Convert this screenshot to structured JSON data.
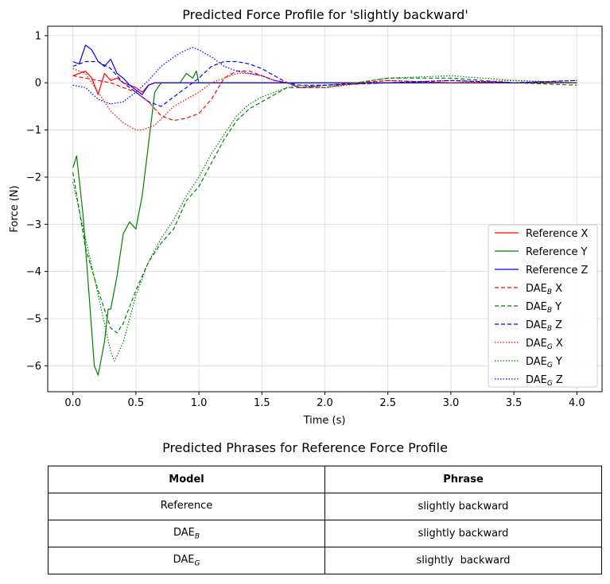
{
  "chart_data": {
    "type": "line",
    "title": "Predicted Force Profile for 'slightly backward'",
    "xlabel": "Time (s)",
    "ylabel": "Force (N)",
    "xlim": [
      -0.2,
      4.2
    ],
    "ylim": [
      -6.55,
      1.2
    ],
    "xticks": [
      0.0,
      0.5,
      1.0,
      1.5,
      2.0,
      2.5,
      3.0,
      3.5,
      4.0
    ],
    "xtick_labels": [
      "0.0",
      "0.5",
      "1.0",
      "1.5",
      "2.0",
      "2.5",
      "3.0",
      "3.5",
      "4.0"
    ],
    "yticks": [
      1,
      0,
      -1,
      -2,
      -3,
      -4,
      -5,
      -6
    ],
    "ytick_labels": [
      "1",
      "0",
      "−1",
      "−2",
      "−3",
      "−4",
      "−5",
      "−6"
    ],
    "grid": true,
    "legend_position": "lower-right",
    "series": [
      {
        "name": "Reference X",
        "color": "#ff0000",
        "dash": "solid",
        "points": [
          [
            0,
            0.15
          ],
          [
            0.05,
            0.2
          ],
          [
            0.1,
            0.25
          ],
          [
            0.15,
            0.1
          ],
          [
            0.2,
            -0.25
          ],
          [
            0.25,
            0.2
          ],
          [
            0.3,
            0.05
          ],
          [
            0.35,
            0.1
          ],
          [
            0.4,
            0.0
          ],
          [
            0.45,
            -0.05
          ],
          [
            0.5,
            -0.1
          ],
          [
            0.55,
            -0.2
          ],
          [
            0.6,
            -0.05
          ],
          [
            0.65,
            0.0
          ],
          [
            1.0,
            0.0
          ],
          [
            4.0,
            0.0
          ]
        ]
      },
      {
        "name": "Reference Y",
        "color": "#008000",
        "dash": "solid",
        "points": [
          [
            0,
            -1.8
          ],
          [
            0.03,
            -1.55
          ],
          [
            0.08,
            -2.8
          ],
          [
            0.12,
            -4.2
          ],
          [
            0.17,
            -6.0
          ],
          [
            0.2,
            -6.2
          ],
          [
            0.25,
            -5.5
          ],
          [
            0.28,
            -4.8
          ],
          [
            0.3,
            -4.8
          ],
          [
            0.35,
            -4.1
          ],
          [
            0.4,
            -3.2
          ],
          [
            0.45,
            -2.95
          ],
          [
            0.5,
            -3.1
          ],
          [
            0.52,
            -2.8
          ],
          [
            0.55,
            -2.4
          ],
          [
            0.6,
            -1.3
          ],
          [
            0.65,
            -0.2
          ],
          [
            0.7,
            0.0
          ],
          [
            0.85,
            0.0
          ],
          [
            0.9,
            0.2
          ],
          [
            0.95,
            0.1
          ],
          [
            0.98,
            0.25
          ],
          [
            1.0,
            0.0
          ],
          [
            4.0,
            0.0
          ]
        ]
      },
      {
        "name": "Reference Z",
        "color": "#0000ff",
        "dash": "solid",
        "points": [
          [
            0,
            0.45
          ],
          [
            0.05,
            0.4
          ],
          [
            0.1,
            0.8
          ],
          [
            0.15,
            0.7
          ],
          [
            0.2,
            0.45
          ],
          [
            0.25,
            0.35
          ],
          [
            0.3,
            0.5
          ],
          [
            0.35,
            0.2
          ],
          [
            0.4,
            0.1
          ],
          [
            0.45,
            -0.05
          ],
          [
            0.5,
            -0.15
          ],
          [
            0.55,
            -0.25
          ],
          [
            0.6,
            -0.05
          ],
          [
            0.65,
            0.0
          ],
          [
            4.0,
            0.0
          ]
        ]
      },
      {
        "name": "DAE_B X",
        "color": "#ff0000",
        "dash": "5,3",
        "points": [
          [
            0,
            0.15
          ],
          [
            0.1,
            0.1
          ],
          [
            0.2,
            0.05
          ],
          [
            0.3,
            0.0
          ],
          [
            0.4,
            -0.1
          ],
          [
            0.5,
            -0.2
          ],
          [
            0.6,
            -0.4
          ],
          [
            0.7,
            -0.7
          ],
          [
            0.8,
            -0.8
          ],
          [
            0.9,
            -0.75
          ],
          [
            1.0,
            -0.65
          ],
          [
            1.1,
            -0.35
          ],
          [
            1.2,
            0.1
          ],
          [
            1.3,
            0.25
          ],
          [
            1.4,
            0.25
          ],
          [
            1.5,
            0.15
          ],
          [
            1.6,
            0.05
          ],
          [
            1.7,
            0.0
          ],
          [
            1.8,
            -0.1
          ],
          [
            2.0,
            -0.05
          ],
          [
            2.5,
            0.05
          ],
          [
            3.0,
            0.0
          ],
          [
            3.5,
            0.0
          ],
          [
            4.0,
            0.0
          ]
        ]
      },
      {
        "name": "DAE_B Y",
        "color": "#008000",
        "dash": "5,3",
        "points": [
          [
            0,
            -1.9
          ],
          [
            0.1,
            -3.5
          ],
          [
            0.2,
            -4.4
          ],
          [
            0.3,
            -5.2
          ],
          [
            0.35,
            -5.3
          ],
          [
            0.4,
            -5.1
          ],
          [
            0.5,
            -4.4
          ],
          [
            0.6,
            -3.8
          ],
          [
            0.7,
            -3.4
          ],
          [
            0.8,
            -3.1
          ],
          [
            0.9,
            -2.5
          ],
          [
            1.0,
            -2.2
          ],
          [
            1.1,
            -1.7
          ],
          [
            1.2,
            -1.2
          ],
          [
            1.3,
            -0.8
          ],
          [
            1.4,
            -0.55
          ],
          [
            1.5,
            -0.4
          ],
          [
            1.6,
            -0.25
          ],
          [
            1.7,
            -0.1
          ],
          [
            1.8,
            -0.1
          ],
          [
            2.0,
            -0.1
          ],
          [
            2.5,
            0.1
          ],
          [
            3.0,
            0.1
          ],
          [
            3.5,
            0.0
          ],
          [
            4.0,
            -0.05
          ]
        ]
      },
      {
        "name": "DAE_B Z",
        "color": "#0000ff",
        "dash": "5,3",
        "points": [
          [
            0,
            0.35
          ],
          [
            0.1,
            0.45
          ],
          [
            0.2,
            0.45
          ],
          [
            0.3,
            0.3
          ],
          [
            0.4,
            0.0
          ],
          [
            0.5,
            -0.2
          ],
          [
            0.6,
            -0.4
          ],
          [
            0.7,
            -0.5
          ],
          [
            0.8,
            -0.3
          ],
          [
            0.9,
            -0.1
          ],
          [
            1.0,
            0.1
          ],
          [
            1.1,
            0.35
          ],
          [
            1.2,
            0.45
          ],
          [
            1.3,
            0.45
          ],
          [
            1.4,
            0.4
          ],
          [
            1.5,
            0.3
          ],
          [
            1.6,
            0.15
          ],
          [
            1.7,
            0.0
          ],
          [
            1.8,
            -0.05
          ],
          [
            2.0,
            -0.05
          ],
          [
            2.5,
            0.0
          ],
          [
            3.0,
            0.05
          ],
          [
            3.5,
            0.0
          ],
          [
            4.0,
            0.05
          ]
        ]
      },
      {
        "name": "DAE_G X",
        "color": "#ff0000",
        "dash": "1.5,2",
        "points": [
          [
            0,
            0.3
          ],
          [
            0.1,
            0.2
          ],
          [
            0.2,
            -0.2
          ],
          [
            0.3,
            -0.6
          ],
          [
            0.4,
            -0.85
          ],
          [
            0.5,
            -1.0
          ],
          [
            0.55,
            -1.0
          ],
          [
            0.65,
            -0.9
          ],
          [
            0.8,
            -0.5
          ],
          [
            0.9,
            -0.35
          ],
          [
            1.0,
            -0.2
          ],
          [
            1.1,
            0.0
          ],
          [
            1.2,
            0.1
          ],
          [
            1.3,
            0.2
          ],
          [
            1.4,
            0.2
          ],
          [
            1.5,
            0.15
          ],
          [
            1.6,
            0.05
          ],
          [
            1.7,
            0.0
          ],
          [
            1.8,
            -0.1
          ],
          [
            2.0,
            -0.1
          ],
          [
            2.5,
            0.05
          ],
          [
            3.0,
            0.0
          ],
          [
            3.5,
            0.05
          ],
          [
            4.0,
            0.0
          ]
        ]
      },
      {
        "name": "DAE_G Y",
        "color": "#008000",
        "dash": "1.5,2",
        "points": [
          [
            0,
            -2.1
          ],
          [
            0.1,
            -3.3
          ],
          [
            0.2,
            -4.5
          ],
          [
            0.3,
            -5.7
          ],
          [
            0.33,
            -5.9
          ],
          [
            0.4,
            -5.5
          ],
          [
            0.5,
            -4.5
          ],
          [
            0.6,
            -3.8
          ],
          [
            0.7,
            -3.3
          ],
          [
            0.8,
            -2.9
          ],
          [
            0.9,
            -2.4
          ],
          [
            1.0,
            -2.0
          ],
          [
            1.1,
            -1.5
          ],
          [
            1.2,
            -1.1
          ],
          [
            1.3,
            -0.7
          ],
          [
            1.4,
            -0.45
          ],
          [
            1.5,
            -0.3
          ],
          [
            1.6,
            -0.2
          ],
          [
            1.7,
            -0.1
          ],
          [
            1.8,
            -0.05
          ],
          [
            2.0,
            -0.1
          ],
          [
            2.5,
            0.1
          ],
          [
            3.0,
            0.15
          ],
          [
            3.5,
            0.05
          ],
          [
            4.0,
            0.0
          ]
        ]
      },
      {
        "name": "DAE_G Z",
        "color": "#0000ff",
        "dash": "1.5,2",
        "points": [
          [
            0,
            -0.05
          ],
          [
            0.1,
            -0.1
          ],
          [
            0.2,
            -0.35
          ],
          [
            0.3,
            -0.45
          ],
          [
            0.4,
            -0.4
          ],
          [
            0.5,
            -0.2
          ],
          [
            0.6,
            0.05
          ],
          [
            0.7,
            0.35
          ],
          [
            0.8,
            0.55
          ],
          [
            0.9,
            0.7
          ],
          [
            0.95,
            0.75
          ],
          [
            1.0,
            0.7
          ],
          [
            1.1,
            0.55
          ],
          [
            1.2,
            0.35
          ],
          [
            1.3,
            0.25
          ],
          [
            1.4,
            0.2
          ],
          [
            1.5,
            0.15
          ],
          [
            1.6,
            0.05
          ],
          [
            1.7,
            0.0
          ],
          [
            1.8,
            -0.1
          ],
          [
            2.0,
            -0.05
          ],
          [
            2.5,
            0.0
          ],
          [
            3.0,
            0.05
          ],
          [
            3.5,
            0.0
          ],
          [
            4.0,
            0.05
          ]
        ]
      }
    ]
  },
  "legend": [
    {
      "base": "Reference",
      "sub": "",
      "axis": "X"
    },
    {
      "base": "Reference",
      "sub": "",
      "axis": "Y"
    },
    {
      "base": "Reference",
      "sub": "",
      "axis": "Z"
    },
    {
      "base": "DAE",
      "sub": "B",
      "axis": "X"
    },
    {
      "base": "DAE",
      "sub": "B",
      "axis": "Y"
    },
    {
      "base": "DAE",
      "sub": "B",
      "axis": "Z"
    },
    {
      "base": "DAE",
      "sub": "G",
      "axis": "X"
    },
    {
      "base": "DAE",
      "sub": "G",
      "axis": "Y"
    },
    {
      "base": "DAE",
      "sub": "G",
      "axis": "Z"
    }
  ],
  "table": {
    "title": "Predicted Phrases for Reference Force Profile",
    "headers": [
      "Model",
      "Phrase"
    ],
    "rows": [
      {
        "model": "Reference",
        "model_sub": "",
        "phrase": "slightly backward"
      },
      {
        "model": "DAE",
        "model_sub": "B",
        "phrase": "slightly backward"
      },
      {
        "model": "DAE",
        "model_sub": "G",
        "phrase": "slightly  backward"
      }
    ]
  }
}
